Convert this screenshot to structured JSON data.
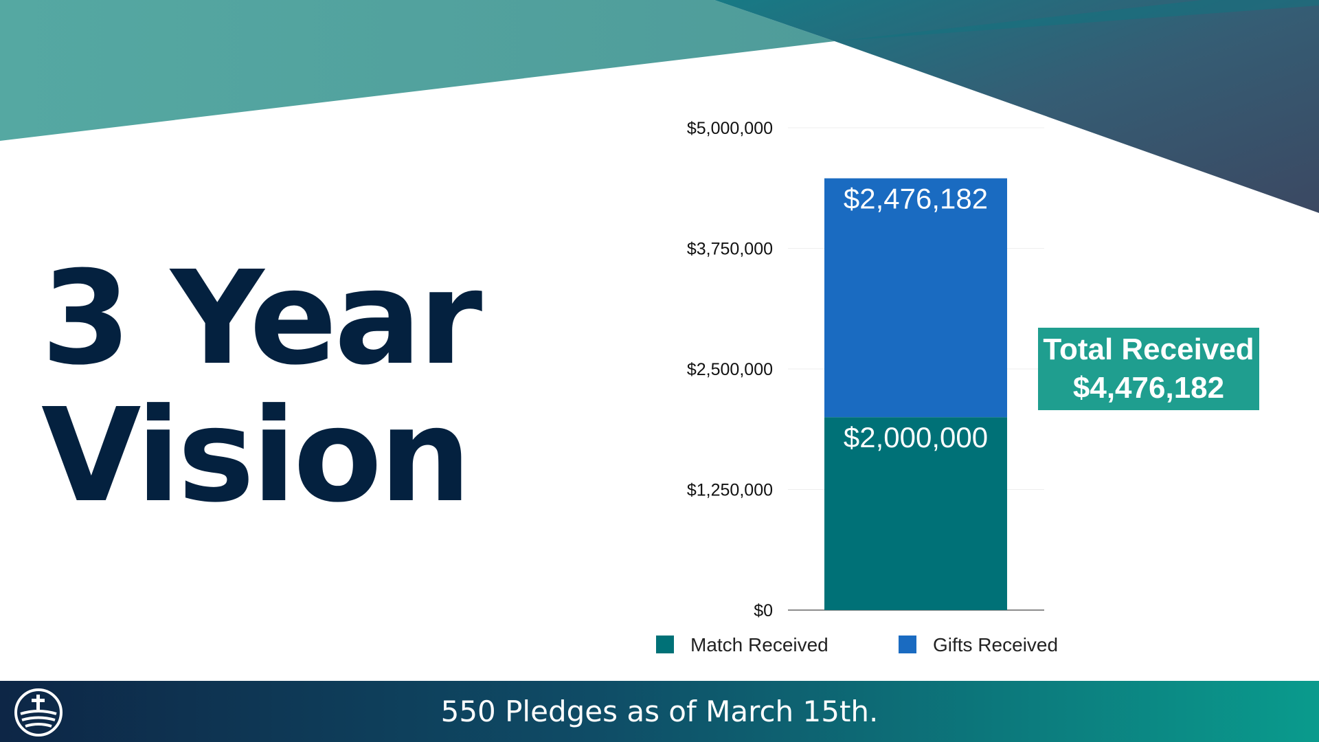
{
  "slide": {
    "title_line1": "3 Year",
    "title_line2": "Vision",
    "total_label": "Total Received",
    "total_value": "$4,476,182",
    "footer_text": "550 Pledges as of March 15th.",
    "logo_icon": "church-cross-wave-logo-icon"
  },
  "colors": {
    "match": "#007177",
    "gifts": "#1a6bc1",
    "title": "#04213f",
    "total_box": "#1f9e8f",
    "teal_band": "#55a8a2",
    "navy_band": "#3a4a64"
  },
  "chart_data": {
    "type": "bar",
    "stacked": true,
    "categories": [
      ""
    ],
    "series": [
      {
        "name": "Match Received",
        "values": [
          2000000
        ],
        "label": "$2,000,000"
      },
      {
        "name": "Gifts Received",
        "values": [
          2476182
        ],
        "label": "$2,476,182"
      }
    ],
    "yticks": [
      "$0",
      "$1,250,000",
      "$2,500,000",
      "$3,750,000",
      "$5,000,000"
    ],
    "ytick_values": [
      0,
      1250000,
      2500000,
      3750000,
      5000000
    ],
    "ylim": [
      0,
      5000000
    ],
    "grid": true,
    "legend": "bottom"
  }
}
